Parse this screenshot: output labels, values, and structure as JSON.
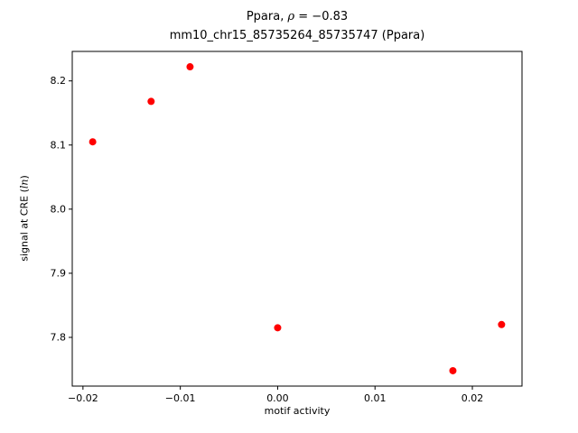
{
  "figure": {
    "title_pre": "Ppara, ",
    "title_rho": "ρ",
    "title_post": " = −0.83",
    "title_line2": "mm10_chr15_85735264_85735747 (Ppara)",
    "xlabel": "motif activity",
    "ylabel_prefix": "signal at CRE (",
    "ylabel_italic": "ln",
    "ylabel_suffix": ")"
  },
  "chart_data": {
    "type": "scatter",
    "title": "Ppara, ρ = −0.83",
    "subtitle": "mm10_chr15_85735264_85735747 (Ppara)",
    "xlabel": "motif activity",
    "ylabel": "signal at CRE (ln)",
    "points": [
      {
        "x": -0.019,
        "y": 8.105
      },
      {
        "x": -0.013,
        "y": 8.168
      },
      {
        "x": -0.009,
        "y": 8.222
      },
      {
        "x": 0.0,
        "y": 7.815
      },
      {
        "x": 0.018,
        "y": 7.748
      },
      {
        "x": 0.023,
        "y": 7.82
      }
    ],
    "marker_color": "#ff0000",
    "marker_radius": 4,
    "xlim": [
      -0.0211,
      0.0251
    ],
    "ylim": [
      7.724,
      8.246
    ],
    "x_ticks": [
      -0.02,
      -0.01,
      0.0,
      0.01,
      0.02
    ],
    "y_ticks": [
      7.8,
      7.9,
      8.0,
      8.1,
      8.2
    ],
    "grid": false,
    "legend": null
  }
}
